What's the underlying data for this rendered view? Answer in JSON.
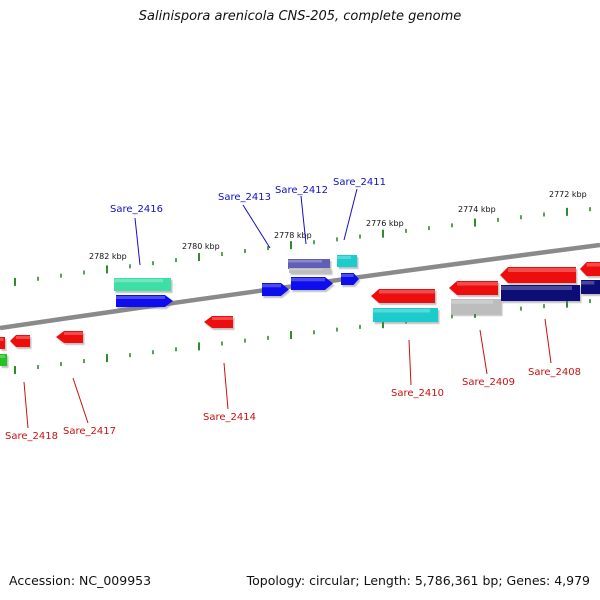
{
  "title": "Salinispora arenicola CNS-205, complete genome",
  "accession": "Accession: NC_009953",
  "summary": "Topology: circular; Length: 5,786,361 bp; Genes: 4,979",
  "colors": {
    "backbone": "#8a8a8a",
    "tick": "#2e8b2e",
    "label_forward": "#1010c8",
    "label_reverse": "#cc1010",
    "red": "#ee1111",
    "blue": "#1111ee",
    "navy": "#0c0c78",
    "cyan": "#1ccccc",
    "teal_green": "#3ddfa5",
    "green": "#22c422",
    "grey": "#bdbdbd",
    "slate_blue": "#5f5fb8"
  },
  "position_labels": [
    "2782 kbp",
    "2780 kbp",
    "2778 kbp",
    "2776 kbp",
    "2774 kbp",
    "2772 kbp"
  ],
  "gene_labels": {
    "forward": [
      "Sare_2416",
      "Sare_2413",
      "Sare_2412",
      "Sare_2411"
    ],
    "reverse": [
      "Sare_2418",
      "Sare_2417",
      "Sare_2414",
      "Sare_2410",
      "Sare_2409",
      "Sare_2408"
    ]
  }
}
